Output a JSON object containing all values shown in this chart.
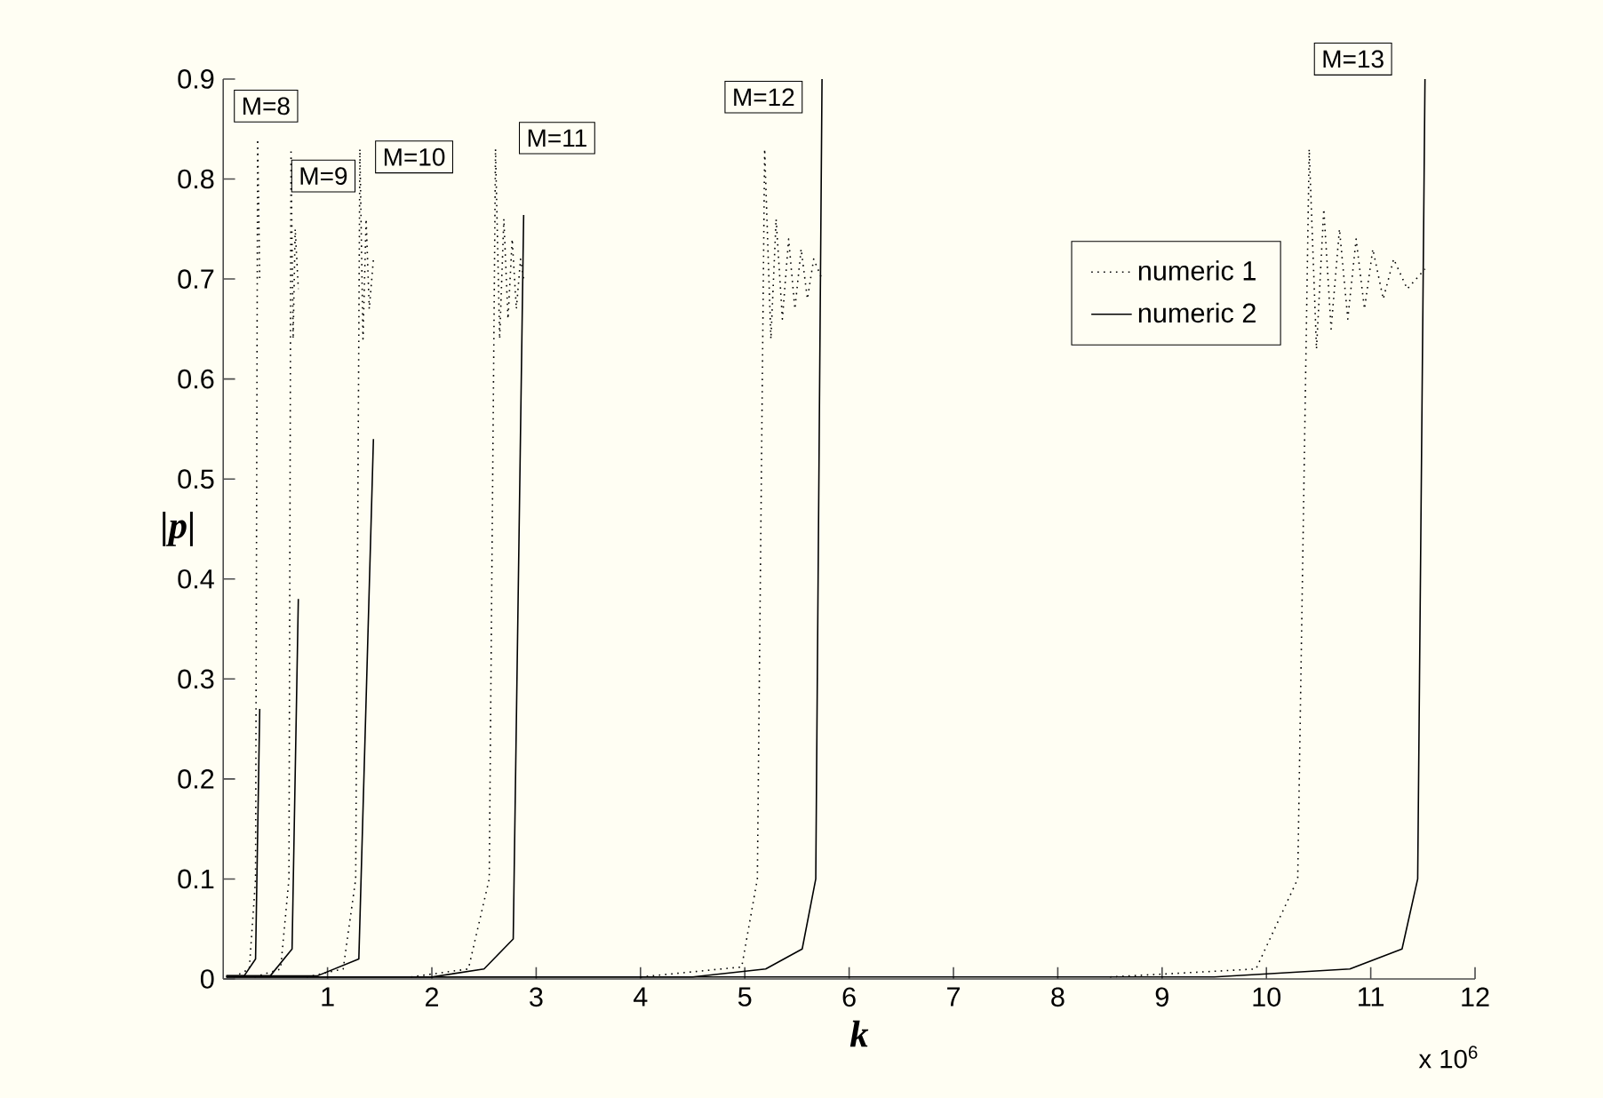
{
  "chart_data": {
    "type": "line",
    "xlabel": "k",
    "ylabel": "|p|",
    "xlim": [
      0,
      12
    ],
    "xticks": [
      1,
      2,
      3,
      4,
      5,
      6,
      7,
      8,
      9,
      10,
      11,
      12
    ],
    "ylim": [
      0,
      0.9
    ],
    "yticks": [
      {
        "value": 0,
        "label": "0"
      },
      0.1,
      0.2,
      0.3,
      0.4,
      0.5,
      0.6,
      0.7,
      0.8,
      0.9
    ],
    "legend": "top right",
    "grid": false,
    "marker": "none",
    "series": [
      {
        "name": "numeric 1",
        "color": "#000000",
        "line_style": "dotted",
        "x": [
          0.1,
          0.25,
          0.31,
          0.33,
          0.35
        ],
        "values": [
          0.002,
          0.01,
          0.1,
          0.84,
          0.7
        ]
      },
      {
        "name": "numeric 2",
        "color": "#000000",
        "line_style": "solid",
        "x": [
          0.03,
          0.2,
          0.31,
          0.35
        ],
        "values": [
          0.003,
          0.003,
          0.02,
          0.27
        ]
      },
      {
        "color": "#000000",
        "line_style": "dotted",
        "x": [
          0.3,
          0.55,
          0.63,
          0.65,
          0.67,
          0.69,
          0.72
        ],
        "values": [
          0.002,
          0.01,
          0.1,
          0.83,
          0.64,
          0.75,
          0.69
        ]
      },
      {
        "color": "#000000",
        "line_style": "solid",
        "x": [
          0.03,
          0.45,
          0.66,
          0.72
        ],
        "values": [
          0.003,
          0.003,
          0.03,
          0.38
        ]
      },
      {
        "color": "#000000",
        "line_style": "dotted",
        "x": [
          0.8,
          1.15,
          1.27,
          1.31,
          1.34,
          1.37,
          1.4,
          1.44
        ],
        "values": [
          0.002,
          0.01,
          0.1,
          0.83,
          0.64,
          0.76,
          0.67,
          0.72
        ]
      },
      {
        "color": "#000000",
        "line_style": "solid",
        "x": [
          0.03,
          0.9,
          1.3,
          1.44
        ],
        "values": [
          0.003,
          0.003,
          0.02,
          0.54
        ]
      },
      {
        "color": "#000000",
        "line_style": "dotted",
        "x": [
          1.8,
          2.35,
          2.55,
          2.61,
          2.65,
          2.69,
          2.73,
          2.77,
          2.81,
          2.85,
          2.88
        ],
        "values": [
          0.002,
          0.01,
          0.1,
          0.83,
          0.64,
          0.76,
          0.66,
          0.74,
          0.67,
          0.72,
          0.7
        ]
      },
      {
        "color": "#000000",
        "line_style": "solid",
        "x": [
          0.03,
          2.0,
          2.5,
          2.78,
          2.88
        ],
        "values": [
          0.002,
          0.002,
          0.01,
          0.04,
          0.764
        ]
      },
      {
        "color": "#000000",
        "line_style": "dotted",
        "x": [
          4.0,
          4.97,
          5.12,
          5.19,
          5.25,
          5.3,
          5.36,
          5.42,
          5.48,
          5.54,
          5.6,
          5.66,
          5.74
        ],
        "values": [
          0.002,
          0.012,
          0.1,
          0.83,
          0.64,
          0.76,
          0.66,
          0.74,
          0.67,
          0.73,
          0.68,
          0.72,
          0.7
        ]
      },
      {
        "color": "#000000",
        "line_style": "solid",
        "x": [
          0.03,
          4.5,
          5.2,
          5.55,
          5.68,
          5.74
        ],
        "values": [
          0.002,
          0.002,
          0.01,
          0.03,
          0.1,
          0.9
        ]
      },
      {
        "color": "#000000",
        "line_style": "dotted",
        "x": [
          8.5,
          9.9,
          10.3,
          10.41,
          10.48,
          10.55,
          10.62,
          10.7,
          10.78,
          10.86,
          10.94,
          11.02,
          11.12,
          11.22,
          11.35,
          11.52
        ],
        "values": [
          0.002,
          0.01,
          0.1,
          0.83,
          0.63,
          0.77,
          0.65,
          0.75,
          0.66,
          0.74,
          0.67,
          0.73,
          0.68,
          0.72,
          0.69,
          0.71
        ]
      },
      {
        "color": "#000000",
        "line_style": "solid",
        "x": [
          0.03,
          9.5,
          10.8,
          11.3,
          11.45,
          11.52
        ],
        "values": [
          0.002,
          0.002,
          0.01,
          0.03,
          0.1,
          0.9
        ]
      }
    ],
    "annotations": [
      {
        "text": "M=8",
        "x": 0.41,
        "y": 0.873
      },
      {
        "text": "M=9",
        "x": 0.96,
        "y": 0.803
      },
      {
        "text": "M=10",
        "x": 1.83,
        "y": 0.822
      },
      {
        "text": "M=11",
        "x": 3.2,
        "y": 0.841
      },
      {
        "text": "M=12",
        "x": 5.18,
        "y": 0.882
      },
      {
        "text": "M=13",
        "x": 10.83,
        "y": 0.92
      },
      "x 10$^{6}$"
    ]
  }
}
